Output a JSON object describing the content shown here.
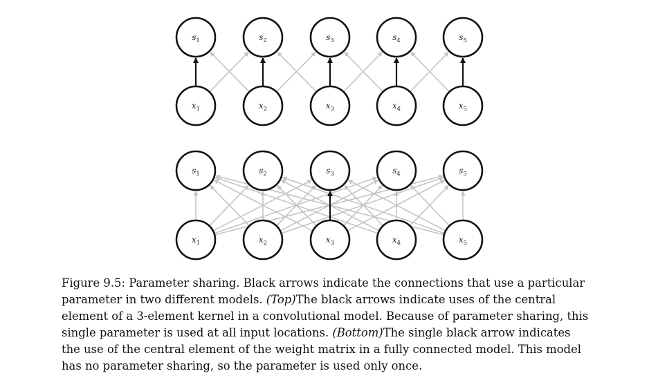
{
  "diagrams": [
    {
      "id": "top",
      "outputs": [
        {
          "base": "s",
          "sub": "1"
        },
        {
          "base": "s",
          "sub": "2"
        },
        {
          "base": "s",
          "sub": "3"
        },
        {
          "base": "s",
          "sub": "4"
        },
        {
          "base": "s",
          "sub": "5"
        }
      ],
      "inputs": [
        {
          "base": "x",
          "sub": "1"
        },
        {
          "base": "x",
          "sub": "2"
        },
        {
          "base": "x",
          "sub": "3"
        },
        {
          "base": "x",
          "sub": "4"
        },
        {
          "base": "x",
          "sub": "5"
        }
      ],
      "connectivity": "convolutional-kernel-3",
      "highlighted_edges": [
        [
          1,
          1
        ],
        [
          2,
          2
        ],
        [
          3,
          3
        ],
        [
          4,
          4
        ],
        [
          5,
          5
        ]
      ]
    },
    {
      "id": "bottom",
      "outputs": [
        {
          "base": "s",
          "sub": "1"
        },
        {
          "base": "s",
          "sub": "2"
        },
        {
          "base": "s",
          "sub": "3"
        },
        {
          "base": "s",
          "sub": "4"
        },
        {
          "base": "s",
          "sub": "5"
        }
      ],
      "inputs": [
        {
          "base": "x",
          "sub": "1"
        },
        {
          "base": "x",
          "sub": "2"
        },
        {
          "base": "x",
          "sub": "3"
        },
        {
          "base": "x",
          "sub": "4"
        },
        {
          "base": "x",
          "sub": "5"
        }
      ],
      "connectivity": "fully-connected",
      "highlighted_edges": [
        [
          3,
          3
        ]
      ]
    }
  ],
  "colors": {
    "highlight_edge": "#111111",
    "other_edge": "#c4c4c4",
    "node_stroke": "#111111"
  },
  "caption": {
    "line1": "Figure 9.5: Parameter sharing. Black arrows indicate the connections that use a particular",
    "line2_a": "parameter in two different models. ",
    "line2_em": "(Top)",
    "line2_b": "The black arrows indicate uses of the central",
    "line3": "element of a 3-element kernel in a convolutional model. Because of parameter sharing, this",
    "line4_a": "single parameter is used at all input locations. ",
    "line4_em": "(Bottom)",
    "line4_b": "The single black arrow indicates",
    "line5": "the use of the central element of the weight matrix in a fully connected model. This model",
    "line6": "has no parameter sharing, so the parameter is used only once."
  }
}
